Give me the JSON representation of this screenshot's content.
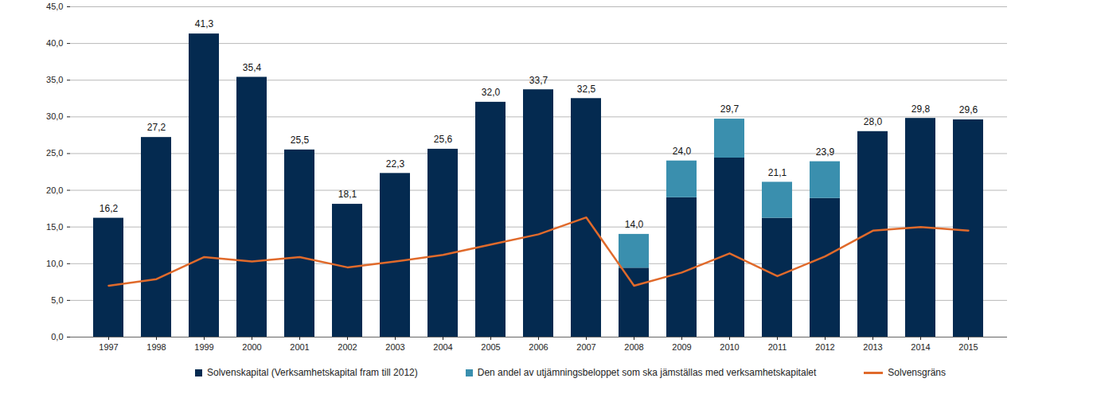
{
  "chart_data": {
    "type": "bar",
    "stacked": true,
    "grid": true,
    "legend": "bottom",
    "categories": [
      "1997",
      "1998",
      "1999",
      "2000",
      "2001",
      "2002",
      "2003",
      "2004",
      "2005",
      "2006",
      "2007",
      "2008",
      "2009",
      "2010",
      "2011",
      "2012",
      "2013",
      "2014",
      "2015"
    ],
    "series": [
      {
        "name": "Solvenskapital (Verksamhetskapital fram till 2012)",
        "color": "#042a50",
        "values": [
          16.2,
          27.2,
          41.3,
          35.4,
          25.5,
          18.1,
          22.3,
          25.6,
          32.0,
          33.7,
          32.5,
          9.4,
          19.0,
          24.4,
          16.2,
          18.9,
          28.0,
          29.8,
          29.6
        ]
      },
      {
        "name": "Den andel av utjämningsbeloppet som ska jämställas med verksamhetskapitalet",
        "color": "#3a8fae",
        "values": [
          null,
          null,
          null,
          null,
          null,
          null,
          null,
          null,
          null,
          null,
          null,
          4.6,
          5.0,
          5.3,
          4.9,
          5.0,
          null,
          null,
          null
        ]
      },
      {
        "name": "Solvensgräns",
        "type": "line",
        "color": "#e06a2b",
        "values": [
          7.0,
          7.9,
          10.9,
          10.3,
          10.9,
          9.5,
          10.3,
          11.2,
          12.6,
          14.0,
          16.3,
          7.0,
          8.8,
          11.4,
          8.3,
          11.0,
          14.5,
          15.0,
          14.5
        ]
      }
    ],
    "totals": [
      16.2,
      27.2,
      41.3,
      35.4,
      25.5,
      18.1,
      22.3,
      25.6,
      32.0,
      33.7,
      32.5,
      14.0,
      24.0,
      29.7,
      21.1,
      23.9,
      28.0,
      29.8,
      29.6
    ],
    "total_labels": [
      "16,2",
      "27,2",
      "41,3",
      "35,4",
      "25,5",
      "18,1",
      "22,3",
      "25,6",
      "32,0",
      "33,7",
      "32,5",
      "14,0",
      "24,0",
      "29,7",
      "21,1",
      "23,9",
      "28,0",
      "29,8",
      "29,6"
    ],
    "ylim": [
      0,
      45
    ],
    "yticks": [
      {
        "value": 0,
        "label": "0,0"
      },
      {
        "value": 5,
        "label": "5,0"
      },
      {
        "value": 10,
        "label": "10,0"
      },
      {
        "value": 15,
        "label": "15,0"
      },
      {
        "value": 20,
        "label": "20,0"
      },
      {
        "value": 25,
        "label": "25,0"
      },
      {
        "value": 30,
        "label": "30,0"
      },
      {
        "value": 35,
        "label": "35,0"
      },
      {
        "value": 40,
        "label": "40,0"
      },
      {
        "value": 45,
        "label": "45,0"
      }
    ]
  }
}
